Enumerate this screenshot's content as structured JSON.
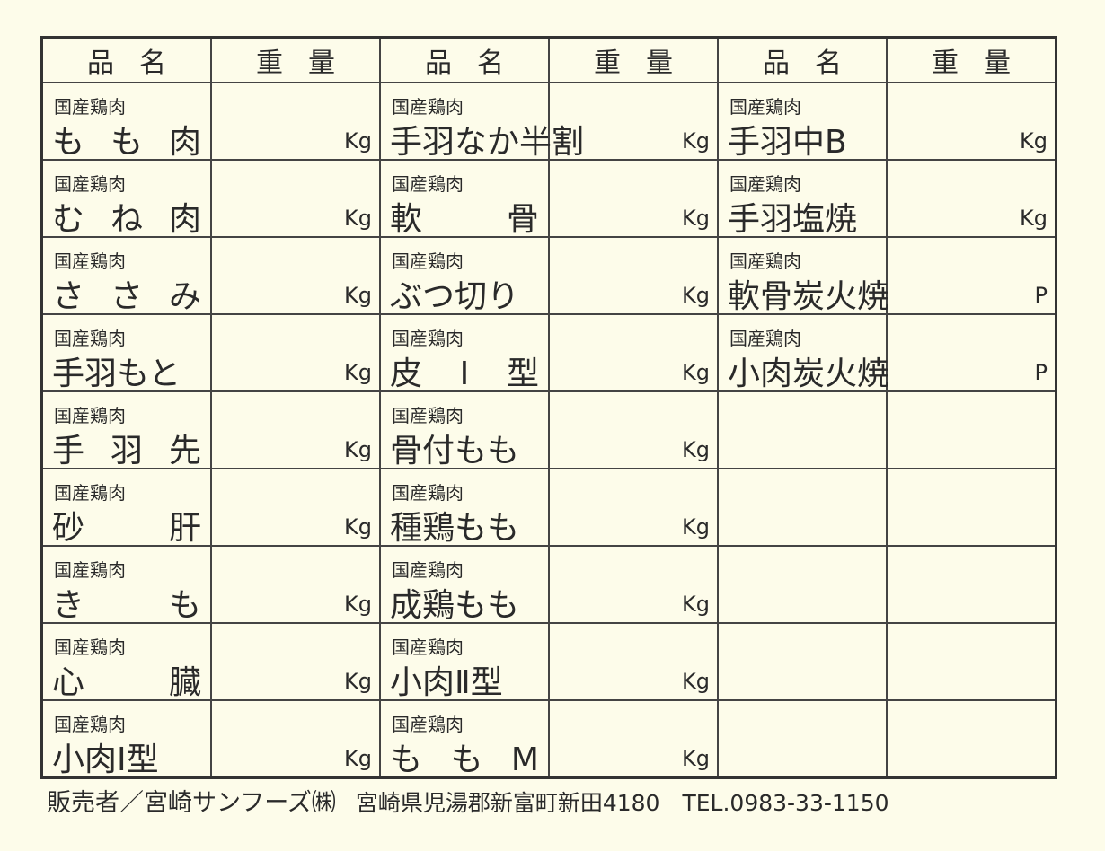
{
  "headers": {
    "name": "品名",
    "weight": "重量"
  },
  "origin_label": "国産鶏肉",
  "columns": [
    [
      {
        "name": "も も 肉",
        "unit": "Kg"
      },
      {
        "name": "む ね 肉",
        "unit": "Kg"
      },
      {
        "name": "さ さ み",
        "unit": "Kg"
      },
      {
        "name": "手羽もと",
        "unit": "Kg"
      },
      {
        "name": "手 羽 先",
        "unit": "Kg"
      },
      {
        "name": "砂 肝",
        "unit": "Kg"
      },
      {
        "name": "き も",
        "unit": "Kg"
      },
      {
        "name": "心 臓",
        "unit": "Kg"
      },
      {
        "name": "小肉Ⅰ型",
        "unit": "Kg"
      }
    ],
    [
      {
        "name": "手羽なか半割",
        "unit": "Kg"
      },
      {
        "name": "軟 骨",
        "unit": "Kg"
      },
      {
        "name": "ぶつ切り",
        "unit": "Kg"
      },
      {
        "name": "皮 Ⅰ 型",
        "unit": "Kg"
      },
      {
        "name": "骨付もも",
        "unit": "Kg"
      },
      {
        "name": "種鶏もも",
        "unit": "Kg"
      },
      {
        "name": "成鶏もも",
        "unit": "Kg"
      },
      {
        "name": "小肉Ⅱ型",
        "unit": "Kg"
      },
      {
        "name": "も も M",
        "unit": "Kg"
      }
    ],
    [
      {
        "name": "手羽中B",
        "unit": "Kg"
      },
      {
        "name": "手羽塩焼",
        "unit": "Kg"
      },
      {
        "name": "軟骨炭火焼",
        "unit": "P"
      },
      {
        "name": "小肉炭火焼",
        "unit": "P"
      }
    ]
  ],
  "footer": {
    "seller": "販売者／宮崎サンフーズ㈱",
    "address": "宮崎県児湯郡新富町新田4180　TEL.0983-33-1150"
  }
}
